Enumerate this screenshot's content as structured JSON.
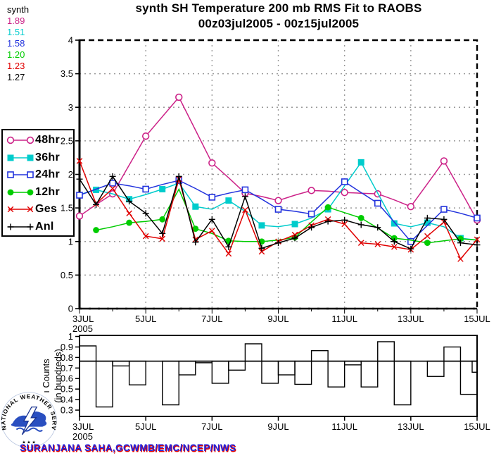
{
  "corner": {
    "label": "synth",
    "values": [
      {
        "value": "1.89",
        "color": "#cc2288"
      },
      {
        "value": "1.51",
        "color": "#00cccc"
      },
      {
        "value": "1.58",
        "color": "#2233dd"
      },
      {
        "value": "1.20",
        "color": "#00cc00"
      },
      {
        "value": "1.23",
        "color": "#e00000"
      },
      {
        "value": "1.27",
        "color": "#000000"
      }
    ]
  },
  "title": {
    "line1": "synth SH Temperature 200 mb RMS Fit to RAOBS",
    "line2": "00z03jul2005 - 00z15jul2005"
  },
  "legend": {
    "items": [
      {
        "label": "48hr",
        "color": "#cc2288",
        "marker": "open-circle"
      },
      {
        "label": "36hr",
        "color": "#00cccc",
        "marker": "filled-square"
      },
      {
        "label": "24hr",
        "color": "#2233dd",
        "marker": "open-square"
      },
      {
        "label": "12hr",
        "color": "#00cc00",
        "marker": "filled-circle"
      },
      {
        "label": "Ges",
        "color": "#e00000",
        "marker": "x-cross"
      },
      {
        "label": "Anl",
        "color": "#000000",
        "marker": "plus"
      }
    ]
  },
  "chart_data": [
    {
      "type": "line",
      "title": "synth SH Temperature 200 mb RMS Fit to RAOBS",
      "subtitle": "00z03jul2005 - 00z15jul2005",
      "x_start_day": 3,
      "x_step_days": 0.5,
      "ylim": [
        0,
        4
      ],
      "grid": true,
      "legend_position": "left",
      "yticks": [
        {
          "v": 0,
          "label": "0"
        },
        {
          "v": 0.5,
          "label": "0.5"
        },
        {
          "v": 1,
          "label": "1"
        },
        {
          "v": 1.5,
          "label": "1.5"
        },
        {
          "v": 2,
          "label": "2"
        },
        {
          "v": 2.5,
          "label": "2.5"
        },
        {
          "v": 3,
          "label": "3"
        },
        {
          "v": 3.5,
          "label": "3.5"
        },
        {
          "v": 4,
          "label": "4"
        }
      ],
      "xticks": [
        {
          "day": 3,
          "label": "3JUL"
        },
        {
          "day": 5,
          "label": "5JUL"
        },
        {
          "day": 7,
          "label": "7JUL"
        },
        {
          "day": 9,
          "label": "9JUL"
        },
        {
          "day": 11,
          "label": "11JUL"
        },
        {
          "day": 13,
          "label": "13JUL"
        },
        {
          "day": 15,
          "label": "15JUL"
        }
      ],
      "x_year_label": "2005",
      "series": [
        {
          "name": "48hr",
          "color": "#cc2288",
          "marker": "open-circle",
          "marker_every": 2,
          "marker_phase": 0,
          "values": [
            1.38,
            1.55,
            1.71,
            2.14,
            2.57,
            2.86,
            3.15,
            2.66,
            2.17,
            1.95,
            1.72,
            1.67,
            1.61,
            1.69,
            1.76,
            1.75,
            1.73,
            1.72,
            1.71,
            1.62,
            1.52,
            1.86,
            2.2,
            1.76,
            1.32
          ]
        },
        {
          "name": "36hr",
          "color": "#00cccc",
          "marker": "filled-square",
          "marker_every": 2,
          "marker_phase": 1,
          "values": [
            1.7,
            1.77,
            1.71,
            1.63,
            1.7,
            1.78,
            1.87,
            1.52,
            1.48,
            1.61,
            1.45,
            1.24,
            1.22,
            1.26,
            1.35,
            1.48,
            1.83,
            2.18,
            1.72,
            1.27,
            1.22,
            1.28,
            1.22,
            1.05,
            1.02
          ]
        },
        {
          "name": "24hr",
          "color": "#2233dd",
          "marker": "open-square",
          "marker_every": 2,
          "marker_phase": 0,
          "values": [
            1.69,
            1.78,
            1.87,
            1.83,
            1.78,
            1.85,
            1.91,
            1.79,
            1.66,
            1.72,
            1.77,
            1.63,
            1.48,
            1.45,
            1.41,
            1.65,
            1.89,
            1.73,
            1.57,
            1.29,
            1.0,
            1.24,
            1.48,
            1.42,
            1.35
          ]
        },
        {
          "name": "12hr",
          "color": "#00cc00",
          "marker": "filled-circle",
          "marker_every": 2,
          "marker_phase": 1,
          "values": [
            null,
            1.17,
            1.22,
            1.28,
            1.3,
            1.33,
            1.78,
            1.19,
            1.12,
            1.01,
            1.0,
            1.0,
            1.02,
            1.06,
            1.29,
            1.51,
            1.43,
            1.35,
            1.2,
            1.05,
            1.02,
            0.98,
            1.01,
            1.04,
            1.02
          ]
        },
        {
          "name": "Ges",
          "color": "#e00000",
          "marker": "x-cross",
          "marker_every": 1,
          "marker_phase": 0,
          "values": [
            2.2,
            1.56,
            1.79,
            1.42,
            1.08,
            1.04,
            1.93,
            1.03,
            1.16,
            0.82,
            1.47,
            0.85,
            1.0,
            1.1,
            1.24,
            1.33,
            1.26,
            0.98,
            0.96,
            0.92,
            0.88,
            1.08,
            1.29,
            0.74,
            1.03
          ]
        },
        {
          "name": "Anl",
          "color": "#000000",
          "marker": "plus",
          "marker_every": 1,
          "marker_phase": 0,
          "values": [
            1.93,
            1.55,
            1.97,
            1.6,
            1.42,
            1.12,
            1.97,
            0.99,
            1.33,
            0.92,
            1.67,
            0.9,
            0.98,
            1.05,
            1.21,
            1.3,
            1.32,
            1.25,
            1.21,
            1.0,
            0.89,
            1.35,
            1.33,
            0.98,
            0.95
          ]
        }
      ]
    },
    {
      "type": "bar",
      "ylabel_line1": "ı Counts",
      "ylabel_line2": "(in hundreds)",
      "x_start_day": 3,
      "x_step_days": 0.5,
      "ylim": [
        0.24,
        1.01
      ],
      "reference_line": 0.765,
      "yticks": [
        {
          "v": 0.3,
          "label": "0.3"
        },
        {
          "v": 0.4,
          "label": "0.4"
        },
        {
          "v": 0.5,
          "label": "0.5"
        },
        {
          "v": 0.6,
          "label": "0.6"
        },
        {
          "v": 0.7,
          "label": "0.7"
        },
        {
          "v": 0.8,
          "label": "0.8"
        },
        {
          "v": 0.9,
          "label": "0.9"
        },
        {
          "v": 1,
          "label": "1"
        }
      ],
      "xticks": [
        {
          "day": 3,
          "label": "3JUL"
        },
        {
          "day": 5,
          "label": "5JUL"
        },
        {
          "day": 7,
          "label": "7JUL"
        },
        {
          "day": 9,
          "label": "9JUL"
        },
        {
          "day": 11,
          "label": "11JUL"
        },
        {
          "day": 13,
          "label": "13JUL"
        },
        {
          "day": 15,
          "label": "15JUL"
        }
      ],
      "x_year_label": "2005",
      "values": [
        0.91,
        0.33,
        0.72,
        0.54,
        0.765,
        0.35,
        0.635,
        0.75,
        0.555,
        0.68,
        0.93,
        0.555,
        0.635,
        0.545,
        0.865,
        0.52,
        0.73,
        0.52,
        0.95,
        0.35,
        0.765,
        0.62,
        0.9,
        0.45,
        0.66
      ]
    }
  ],
  "footer": {
    "credit": "SURANJANA SAHA,GCWMB/EMC/NCEP/NWS",
    "logo_text": "NATIONAL  WEATHER  SERVICE",
    "logo_stars": "★ ★ ★"
  }
}
